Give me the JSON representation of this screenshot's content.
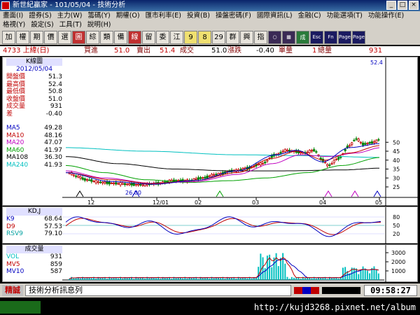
{
  "window": {
    "title": "新世紀贏家 - 101/05/04 - 技術分析"
  },
  "menu": {
    "row1": [
      "畫面(I)",
      "證券(S)",
      "主力(W)",
      "籌碼(Y)",
      "期權(O)",
      "匯市利率(E)",
      "投資(B)",
      "操盤密碼(F)",
      "國際資訊(L)",
      "金融(C)",
      "功能選項(T)",
      "功能操作(E)"
    ],
    "row2": [
      "格視(Y)",
      "設定(S)",
      "工具(T)",
      "說明(H)"
    ]
  },
  "toolbar": {
    "buttons": [
      "加",
      "權",
      "期",
      "價",
      "選",
      "圖",
      "綜",
      "類",
      "備",
      "線",
      "留",
      "委",
      "江",
      "9",
      "8",
      "29",
      "群",
      "興",
      "指",
      "○",
      "▦",
      "成",
      "Esc",
      "Fn",
      "Page Up",
      "Page Down"
    ]
  },
  "info": {
    "stock": "4733 上緯(日)",
    "buy_label": "買進",
    "buy": "51.0",
    "sell_label": "賣出",
    "sell": "51.4",
    "deal_label": "成交",
    "deal": "51.0",
    "change_label": "漲跌",
    "change": "-0.40",
    "qty_label": "單量",
    "qty": "1",
    "total_label": "總量",
    "total": "931"
  },
  "kpanel": {
    "header": "K線圖",
    "date": "2012/05/04",
    "rows": [
      {
        "label": "開盤價",
        "value": "51.3"
      },
      {
        "label": "最高價",
        "value": "52.4"
      },
      {
        "label": "最低價",
        "value": "50.8"
      },
      {
        "label": "收盤價",
        "value": "51.0"
      },
      {
        "label": "成交量",
        "value": "931"
      },
      {
        "label": "差",
        "value": "-0.40"
      }
    ],
    "ma": [
      {
        "label": "MA5",
        "value": "49.28",
        "color": "#0000c0"
      },
      {
        "label": "MA10",
        "value": "48.16",
        "color": "#c00000"
      },
      {
        "label": "MA20",
        "value": "47.07",
        "color": "#c000c0"
      },
      {
        "label": "MA60",
        "value": "41.97",
        "color": "#00a000"
      },
      {
        "label": "MA108",
        "value": "36.30",
        "color": "#000000"
      },
      {
        "label": "MA240",
        "value": "41.93",
        "color": "#00c0c0"
      }
    ],
    "high_mark": "52.4",
    "low_mark": "26.00",
    "y_ticks": [
      "50",
      "45",
      "40",
      "35",
      "30",
      "25"
    ],
    "x_ticks": [
      "12",
      "12/01",
      "02",
      "03",
      "04",
      "05"
    ]
  },
  "kdpanel": {
    "header": "KD,J",
    "rows": [
      {
        "label": "K9",
        "value": "68.64",
        "color": "#0000c0"
      },
      {
        "label": "D9",
        "value": "57.53",
        "color": "#c00000"
      },
      {
        "label": "RSV9",
        "value": "79.10",
        "color": "#00a0a0"
      }
    ],
    "y_ticks": [
      "80",
      "50",
      "20"
    ]
  },
  "volpanel": {
    "header": "成交量",
    "rows": [
      {
        "label": "VOL",
        "value": "931",
        "color": "#00c0c0"
      },
      {
        "label": "MV5",
        "value": "859",
        "color": "#c00000"
      },
      {
        "label": "MV10",
        "value": "587",
        "color": "#0000c0"
      }
    ],
    "y_ticks": [
      "3000",
      "2000",
      "1000"
    ]
  },
  "status": {
    "left": "精誠",
    "message": "技術分析訊息列",
    "time": "09:58:27"
  },
  "taskbar": {
    "watermark": "http://kujd3268.pixnet.net/album"
  },
  "colors": {
    "up": "#c00000",
    "down": "#008000",
    "ma240": "#00c0c0"
  }
}
